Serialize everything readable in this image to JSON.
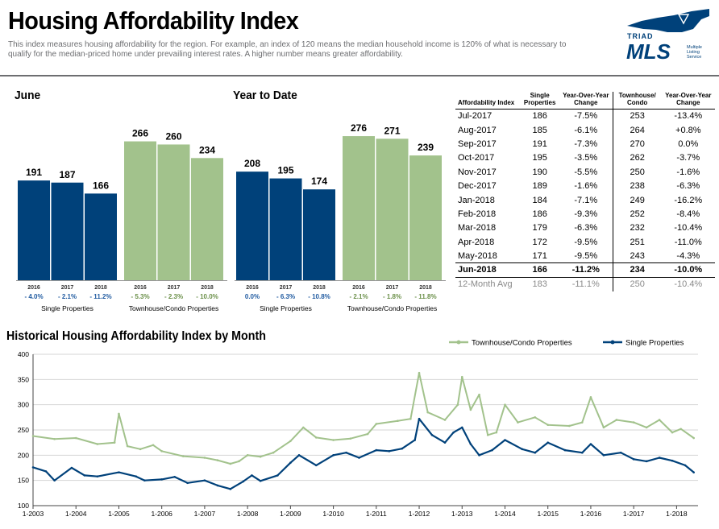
{
  "header": {
    "title": "Housing Affordability Index",
    "subtitle": "This index measures housing affordability for the region. For example, an index of 120 means the median household income is 120% of what is necessary to qualify for the median-priced home under prevailing interest rates. A higher number means greater affordability."
  },
  "logo": {
    "line1": "TRIAD",
    "line2": "MLS",
    "tag1": "Multiple",
    "tag2": "Listing",
    "tag3": "Service"
  },
  "colors": {
    "single": "#00417a",
    "townhouse": "#a2c28c",
    "single_change": "#1f5aa0",
    "townhouse_change": "#6a8f48"
  },
  "chart_data": [
    {
      "type": "bar",
      "title": "June",
      "groups": [
        {
          "name": "Single Properties",
          "categories": [
            "2016",
            "2017",
            "2018"
          ],
          "values": [
            191,
            187,
            166
          ],
          "changes": [
            "- 4.0%",
            "- 2.1%",
            "- 11.2%"
          ]
        },
        {
          "name": "Townhouse/Condo Properties",
          "categories": [
            "2016",
            "2017",
            "2018"
          ],
          "values": [
            266,
            260,
            234
          ],
          "changes": [
            "- 5.3%",
            "- 2.3%",
            "- 10.0%"
          ]
        }
      ]
    },
    {
      "type": "bar",
      "title": "Year to Date",
      "groups": [
        {
          "name": "Single Properties",
          "categories": [
            "2016",
            "2017",
            "2018"
          ],
          "values": [
            208,
            195,
            174
          ],
          "changes": [
            "0.0%",
            "- 6.3%",
            "- 10.8%"
          ]
        },
        {
          "name": "Townhouse/Condo Properties",
          "categories": [
            "2016",
            "2017",
            "2018"
          ],
          "values": [
            276,
            271,
            239
          ],
          "changes": [
            "- 2.1%",
            "- 1.8%",
            "- 11.8%"
          ]
        }
      ]
    },
    {
      "type": "table",
      "columns": [
        "Affordability Index",
        "Single Properties",
        "Year-Over-Year Change",
        "Townhouse/ Condo",
        "Year-Over-Year Change"
      ],
      "rows": [
        [
          "Jul-2017",
          "186",
          "-7.5%",
          "253",
          "-13.4%"
        ],
        [
          "Aug-2017",
          "185",
          "-6.1%",
          "264",
          "+0.8%"
        ],
        [
          "Sep-2017",
          "191",
          "-7.3%",
          "270",
          "0.0%"
        ],
        [
          "Oct-2017",
          "195",
          "-3.5%",
          "262",
          "-3.7%"
        ],
        [
          "Nov-2017",
          "190",
          "-5.5%",
          "250",
          "-1.6%"
        ],
        [
          "Dec-2017",
          "189",
          "-1.6%",
          "238",
          "-6.3%"
        ],
        [
          "Jan-2018",
          "184",
          "-7.1%",
          "249",
          "-16.2%"
        ],
        [
          "Feb-2018",
          "186",
          "-9.3%",
          "252",
          "-8.4%"
        ],
        [
          "Mar-2018",
          "179",
          "-6.3%",
          "232",
          "-10.4%"
        ],
        [
          "Apr-2018",
          "172",
          "-9.5%",
          "251",
          "-11.0%"
        ],
        [
          "May-2018",
          "171",
          "-9.5%",
          "243",
          "-4.3%"
        ],
        [
          "Jun-2018",
          "166",
          "-11.2%",
          "234",
          "-10.0%"
        ]
      ],
      "average_row": [
        "12-Month Avg",
        "183",
        "-11.1%",
        "250",
        "-10.4%"
      ]
    },
    {
      "type": "line",
      "title": "Historical Housing Affordability Index by Month",
      "x_ticks": [
        "1-2003",
        "1-2004",
        "1-2005",
        "1-2006",
        "1-2007",
        "1-2008",
        "1-2009",
        "1-2010",
        "1-2011",
        "1-2012",
        "1-2013",
        "1-2014",
        "1-2015",
        "1-2016",
        "1-2017",
        "1-2018"
      ],
      "ylim": [
        100,
        400
      ],
      "y_ticks": [
        100,
        150,
        200,
        250,
        300,
        350,
        400
      ],
      "grid": "horizontal",
      "legend": "top-right",
      "series": [
        {
          "name": "Townhouse/Condo Properties",
          "values": [
            [
              2003.0,
              238
            ],
            [
              2003.5,
              232
            ],
            [
              2004.0,
              234
            ],
            [
              2004.5,
              222
            ],
            [
              2004.9,
              225
            ],
            [
              2005.0,
              282
            ],
            [
              2005.2,
              218
            ],
            [
              2005.5,
              212
            ],
            [
              2005.8,
              220
            ],
            [
              2006.0,
              208
            ],
            [
              2006.5,
              198
            ],
            [
              2007.0,
              195
            ],
            [
              2007.3,
              190
            ],
            [
              2007.6,
              183
            ],
            [
              2007.8,
              188
            ],
            [
              2008.0,
              200
            ],
            [
              2008.3,
              197
            ],
            [
              2008.6,
              205
            ],
            [
              2009.0,
              228
            ],
            [
              2009.3,
              255
            ],
            [
              2009.6,
              235
            ],
            [
              2010.0,
              230
            ],
            [
              2010.4,
              233
            ],
            [
              2010.8,
              242
            ],
            [
              2011.0,
              262
            ],
            [
              2011.5,
              268
            ],
            [
              2011.8,
              272
            ],
            [
              2012.0,
              363
            ],
            [
              2012.2,
              285
            ],
            [
              2012.6,
              270
            ],
            [
              2012.9,
              300
            ],
            [
              2013.0,
              355
            ],
            [
              2013.2,
              290
            ],
            [
              2013.4,
              320
            ],
            [
              2013.6,
              240
            ],
            [
              2013.8,
              245
            ],
            [
              2014.0,
              300
            ],
            [
              2014.3,
              265
            ],
            [
              2014.7,
              275
            ],
            [
              2015.0,
              260
            ],
            [
              2015.5,
              258
            ],
            [
              2015.8,
              265
            ],
            [
              2016.0,
              315
            ],
            [
              2016.3,
              255
            ],
            [
              2016.6,
              270
            ],
            [
              2017.0,
              265
            ],
            [
              2017.3,
              255
            ],
            [
              2017.6,
              270
            ],
            [
              2017.9,
              245
            ],
            [
              2018.1,
              252
            ],
            [
              2018.4,
              234
            ]
          ]
        },
        {
          "name": "Single Properties",
          "values": [
            [
              2003.0,
              176
            ],
            [
              2003.3,
              168
            ],
            [
              2003.5,
              150
            ],
            [
              2003.9,
              175
            ],
            [
              2004.2,
              160
            ],
            [
              2004.5,
              158
            ],
            [
              2005.0,
              166
            ],
            [
              2005.4,
              158
            ],
            [
              2005.6,
              150
            ],
            [
              2006.0,
              152
            ],
            [
              2006.3,
              157
            ],
            [
              2006.6,
              145
            ],
            [
              2007.0,
              150
            ],
            [
              2007.3,
              140
            ],
            [
              2007.6,
              133
            ],
            [
              2007.9,
              148
            ],
            [
              2008.1,
              160
            ],
            [
              2008.3,
              149
            ],
            [
              2008.7,
              160
            ],
            [
              2009.0,
              185
            ],
            [
              2009.2,
              200
            ],
            [
              2009.6,
              180
            ],
            [
              2010.0,
              200
            ],
            [
              2010.3,
              205
            ],
            [
              2010.6,
              195
            ],
            [
              2011.0,
              210
            ],
            [
              2011.3,
              208
            ],
            [
              2011.6,
              213
            ],
            [
              2011.9,
              230
            ],
            [
              2012.0,
              272
            ],
            [
              2012.3,
              240
            ],
            [
              2012.6,
              225
            ],
            [
              2012.8,
              245
            ],
            [
              2013.0,
              255
            ],
            [
              2013.2,
              222
            ],
            [
              2013.4,
              200
            ],
            [
              2013.7,
              210
            ],
            [
              2014.0,
              230
            ],
            [
              2014.4,
              212
            ],
            [
              2014.7,
              205
            ],
            [
              2015.0,
              225
            ],
            [
              2015.4,
              210
            ],
            [
              2015.8,
              205
            ],
            [
              2016.0,
              222
            ],
            [
              2016.3,
              200
            ],
            [
              2016.7,
              205
            ],
            [
              2017.0,
              192
            ],
            [
              2017.3,
              188
            ],
            [
              2017.6,
              195
            ],
            [
              2017.9,
              189
            ],
            [
              2018.2,
              180
            ],
            [
              2018.4,
              166
            ]
          ]
        }
      ]
    }
  ]
}
